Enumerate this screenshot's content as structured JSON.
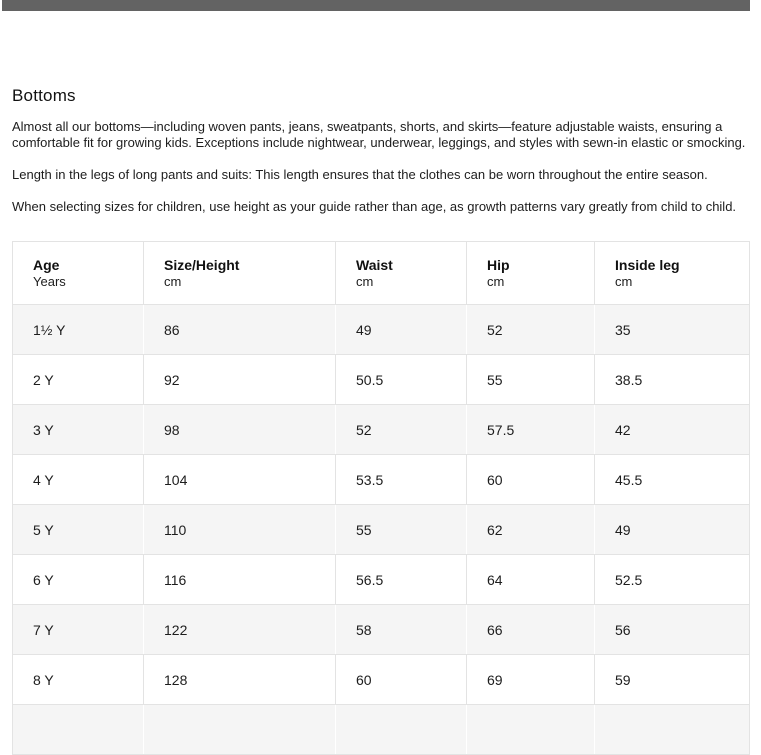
{
  "top_bar": {
    "color": "#636363"
  },
  "section": {
    "heading": "Bottoms",
    "paragraphs": [
      "Almost all our bottoms—including woven pants, jeans, sweatpants, shorts, and skirts—feature adjustable waists, ensuring a comfortable fit for growing kids. Exceptions include nightwear, underwear, leggings, and styles with sewn-in elastic or smocking.",
      "Length in the legs of long pants and suits: This length ensures that the clothes can be worn throughout the entire season.",
      "When selecting sizes for children, use height as your guide rather than age, as growth patterns vary greatly from child to child."
    ]
  },
  "size_table": {
    "columns": [
      {
        "label": "Age",
        "unit": "Years"
      },
      {
        "label": "Size/Height",
        "unit": "cm"
      },
      {
        "label": "Waist",
        "unit": "cm"
      },
      {
        "label": "Hip",
        "unit": "cm"
      },
      {
        "label": "Inside leg",
        "unit": "cm"
      }
    ],
    "rows": [
      [
        "1½ Y",
        "86",
        "49",
        "52",
        "35"
      ],
      [
        "2 Y",
        "92",
        "50.5",
        "55",
        "38.5"
      ],
      [
        "3 Y",
        "98",
        "52",
        "57.5",
        "42"
      ],
      [
        "4 Y",
        "104",
        "53.5",
        "60",
        "45.5"
      ],
      [
        "5 Y",
        "110",
        "55",
        "62",
        "49"
      ],
      [
        "6 Y",
        "116",
        "56.5",
        "64",
        "52.5"
      ],
      [
        "7 Y",
        "122",
        "58",
        "66",
        "56"
      ],
      [
        "8 Y",
        "128",
        "60",
        "69",
        "59"
      ]
    ],
    "colors": {
      "shaded_row_bg": "#f5f5f5",
      "border": "#e3e3e3",
      "text": "#1d1d1d"
    }
  }
}
